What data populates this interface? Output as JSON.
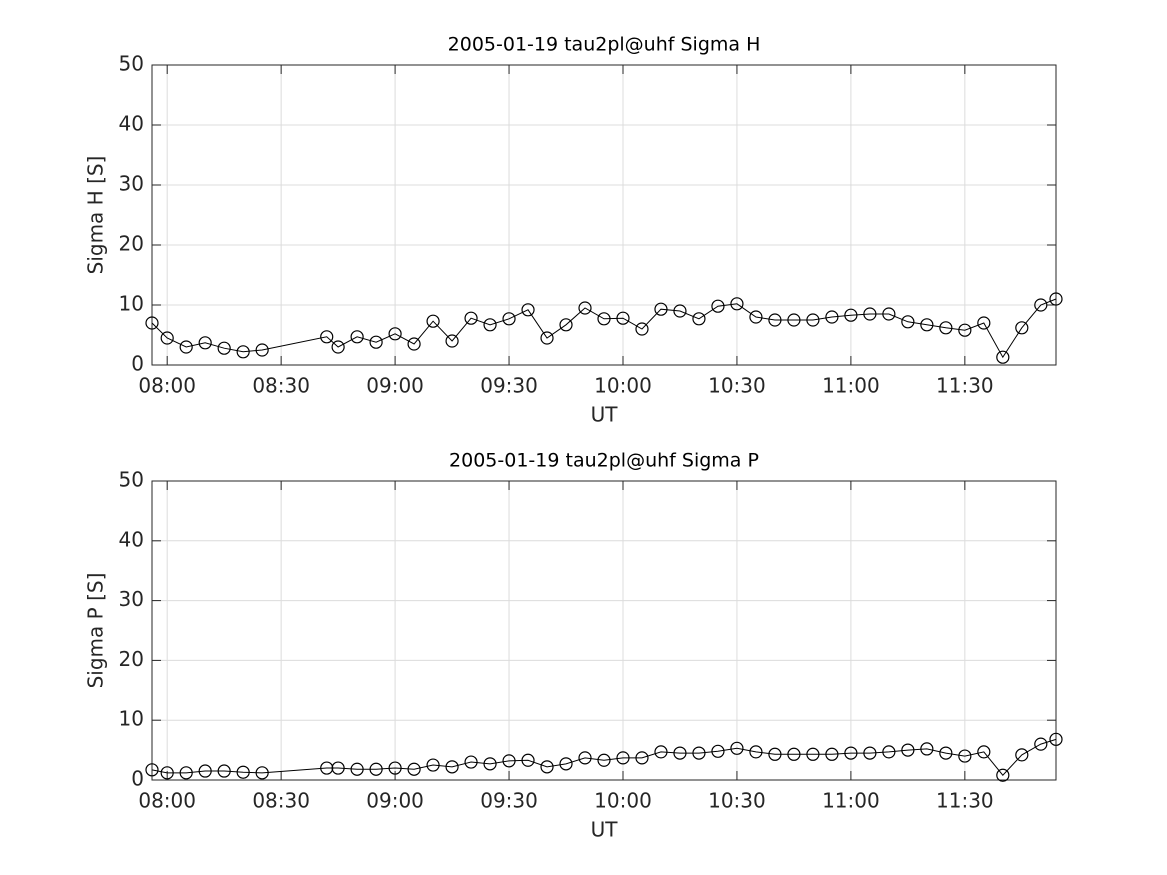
{
  "chart_data": [
    {
      "type": "line",
      "title": "2005-01-19  tau2pl@uhf Sigma H",
      "xlabel": "UT",
      "ylabel": "Sigma H [S]",
      "x": [
        "07:56",
        "08:00",
        "08:05",
        "08:10",
        "08:15",
        "08:20",
        "08:25",
        "08:42",
        "08:45",
        "08:50",
        "08:55",
        "09:00",
        "09:05",
        "09:10",
        "09:15",
        "09:20",
        "09:25",
        "09:30",
        "09:35",
        "09:40",
        "09:45",
        "09:50",
        "09:55",
        "10:00",
        "10:05",
        "10:10",
        "10:15",
        "10:20",
        "10:25",
        "10:30",
        "10:35",
        "10:40",
        "10:45",
        "10:50",
        "10:55",
        "11:00",
        "11:05",
        "11:10",
        "11:15",
        "11:20",
        "11:25",
        "11:30",
        "11:35",
        "11:40",
        "11:45",
        "11:50",
        "11:54"
      ],
      "series": [
        {
          "color": "#000000",
          "marker": "circle",
          "values": [
            7.0,
            4.5,
            3.0,
            3.7,
            2.8,
            2.2,
            2.5,
            4.7,
            3.0,
            4.7,
            3.8,
            5.2,
            3.5,
            7.3,
            4.0,
            7.8,
            6.7,
            7.7,
            9.2,
            4.5,
            6.7,
            9.5,
            7.7,
            7.8,
            6.0,
            9.3,
            9.0,
            7.7,
            9.8,
            10.2,
            8.0,
            7.5,
            7.5,
            7.5,
            8.0,
            8.3,
            8.5,
            8.5,
            7.2,
            6.7,
            6.2,
            5.8,
            7.0,
            1.3,
            6.2,
            10.0,
            11.0
          ]
        }
      ],
      "xlim": [
        "07:56",
        "11:54"
      ],
      "xticks": [
        "08:00",
        "08:30",
        "09:00",
        "09:30",
        "10:00",
        "10:30",
        "11:00",
        "11:30"
      ],
      "ylim": [
        0,
        50
      ],
      "yticks": [
        0,
        10,
        20,
        30,
        40,
        50
      ],
      "grid": true
    },
    {
      "type": "line",
      "title": "2005-01-19  tau2pl@uhf Sigma P",
      "xlabel": "UT",
      "ylabel": "Sigma P [S]",
      "x": [
        "07:56",
        "08:00",
        "08:05",
        "08:10",
        "08:15",
        "08:20",
        "08:25",
        "08:42",
        "08:45",
        "08:50",
        "08:55",
        "09:00",
        "09:05",
        "09:10",
        "09:15",
        "09:20",
        "09:25",
        "09:30",
        "09:35",
        "09:40",
        "09:45",
        "09:50",
        "09:55",
        "10:00",
        "10:05",
        "10:10",
        "10:15",
        "10:20",
        "10:25",
        "10:30",
        "10:35",
        "10:40",
        "10:45",
        "10:50",
        "10:55",
        "11:00",
        "11:05",
        "11:10",
        "11:15",
        "11:20",
        "11:25",
        "11:30",
        "11:35",
        "11:40",
        "11:45",
        "11:50",
        "11:54"
      ],
      "series": [
        {
          "color": "#000000",
          "marker": "circle",
          "values": [
            1.7,
            1.2,
            1.2,
            1.5,
            1.5,
            1.3,
            1.2,
            2.0,
            2.0,
            1.8,
            1.8,
            2.0,
            1.8,
            2.5,
            2.2,
            3.0,
            2.7,
            3.2,
            3.3,
            2.2,
            2.7,
            3.7,
            3.3,
            3.7,
            3.7,
            4.7,
            4.5,
            4.5,
            4.8,
            5.3,
            4.7,
            4.3,
            4.3,
            4.3,
            4.3,
            4.5,
            4.5,
            4.7,
            5.0,
            5.2,
            4.5,
            4.0,
            4.7,
            0.8,
            4.2,
            6.0,
            6.8
          ]
        }
      ],
      "xlim": [
        "07:56",
        "11:54"
      ],
      "xticks": [
        "08:00",
        "08:30",
        "09:00",
        "09:30",
        "10:00",
        "10:30",
        "11:00",
        "11:30"
      ],
      "ylim": [
        0,
        50
      ],
      "yticks": [
        0,
        10,
        20,
        30,
        40,
        50
      ],
      "grid": true
    }
  ]
}
